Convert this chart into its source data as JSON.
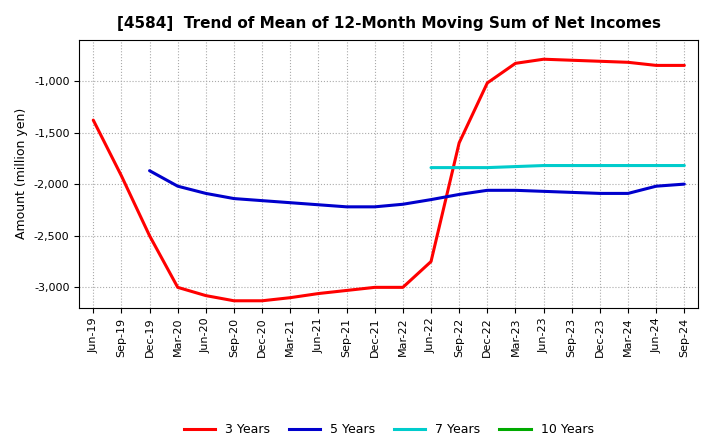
{
  "title": "[4584]  Trend of Mean of 12-Month Moving Sum of Net Incomes",
  "ylabel": "Amount (million yen)",
  "background_color": "#ffffff",
  "grid_color": "#aaaaaa",
  "x_labels": [
    "Jun-19",
    "Sep-19",
    "Dec-19",
    "Mar-20",
    "Jun-20",
    "Sep-20",
    "Dec-20",
    "Mar-21",
    "Jun-21",
    "Sep-21",
    "Dec-21",
    "Mar-22",
    "Jun-22",
    "Sep-22",
    "Dec-22",
    "Mar-23",
    "Jun-23",
    "Sep-23",
    "Dec-23",
    "Mar-24",
    "Jun-24",
    "Sep-24"
  ],
  "series": {
    "3yr": {
      "color": "#ff0000",
      "label": "3 Years",
      "data_x": [
        0,
        1,
        2,
        3,
        4,
        5,
        6,
        7,
        8,
        9,
        10,
        11,
        12,
        13,
        14,
        15,
        16,
        17,
        18,
        19,
        20,
        21
      ],
      "data_y": [
        -1380,
        -1920,
        -2500,
        -3000,
        -3080,
        -3130,
        -3130,
        -3100,
        -3060,
        -3030,
        -3000,
        -3000,
        -2750,
        -1600,
        -1020,
        -830,
        -790,
        -800,
        -810,
        -820,
        -850,
        -850
      ]
    },
    "5yr": {
      "color": "#0000cc",
      "label": "5 Years",
      "data_x": [
        2,
        3,
        4,
        5,
        6,
        7,
        8,
        9,
        10,
        11,
        12,
        13,
        14,
        15,
        16,
        17,
        18,
        19,
        20,
        21
      ],
      "data_y": [
        -1870,
        -2020,
        -2090,
        -2140,
        -2160,
        -2180,
        -2200,
        -2220,
        -2220,
        -2195,
        -2150,
        -2100,
        -2060,
        -2060,
        -2070,
        -2080,
        -2090,
        -2090,
        -2020,
        -2000
      ]
    },
    "7yr": {
      "color": "#00cccc",
      "label": "7 Years",
      "data_x": [
        12,
        13,
        14,
        15,
        16,
        17,
        18,
        19,
        20,
        21
      ],
      "data_y": [
        -1840,
        -1840,
        -1840,
        -1830,
        -1820,
        -1820,
        -1820,
        -1820,
        -1820,
        -1820
      ]
    },
    "10yr": {
      "color": "#00aa00",
      "label": "10 Years",
      "data_x": [],
      "data_y": []
    }
  },
  "ylim": [
    -3200,
    -600
  ],
  "yticks": [
    -3000,
    -2500,
    -2000,
    -1500,
    -1000
  ],
  "title_fontsize": 11,
  "axis_fontsize": 9,
  "tick_fontsize": 8,
  "legend_fontsize": 9
}
